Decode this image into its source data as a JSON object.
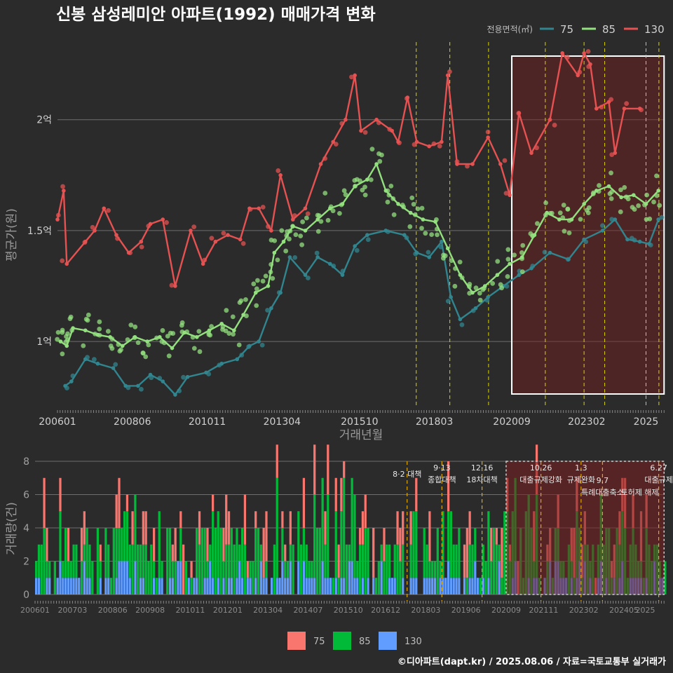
{
  "colors": {
    "s75": "#31858f",
    "s85": "#93e07f",
    "s130": "#e65151",
    "b75": "#f8766d",
    "b85": "#00ba38",
    "b130": "#619cff",
    "grid": "#6e6e6e",
    "event": "#d9d500"
  },
  "chart_data": [
    {
      "type": "line",
      "title": "신봉 삼성레미안 아파트(1992) 매매가격 변화",
      "xlabel": "거래년월",
      "ylabel": "평균가(원)",
      "x_ticks": [
        "200601",
        "200806",
        "201011",
        "201304",
        "201510",
        "201803",
        "202009",
        "202302",
        "2025"
      ],
      "y_ticks": [
        {
          "value": 1.0,
          "label": "1억"
        },
        {
          "value": 1.5,
          "label": "1.5억"
        },
        {
          "value": 2.0,
          "label": "2억"
        }
      ],
      "ylim": [
        0.7,
        2.35
      ],
      "xlim": [
        2006.0,
        2025.6
      ],
      "legend": {
        "title": "전용면적(㎡)",
        "position": "top-right",
        "items": [
          "75",
          "85",
          "130"
        ]
      },
      "highlight_range": [
        "2020-09",
        "2025-08"
      ],
      "event_lines": [
        "2017-08",
        "2018-09",
        "2019-12",
        "2021-10",
        "2023-01",
        "2023-09",
        "2025-01",
        "2025-06"
      ],
      "series": [
        {
          "name": "75",
          "points": [
            [
              2006.25,
              0.8
            ],
            [
              2006.45,
              0.82
            ],
            [
              2006.9,
              0.92
            ],
            [
              2007.3,
              0.9
            ],
            [
              2007.8,
              0.88
            ],
            [
              2008.2,
              0.8
            ],
            [
              2008.6,
              0.8
            ],
            [
              2009.0,
              0.85
            ],
            [
              2009.4,
              0.82
            ],
            [
              2009.8,
              0.76
            ],
            [
              2010.2,
              0.84
            ],
            [
              2010.8,
              0.86
            ],
            [
              2011.3,
              0.9
            ],
            [
              2011.8,
              0.92
            ],
            [
              2012.2,
              0.98
            ],
            [
              2012.5,
              1.0
            ],
            [
              2012.9,
              1.15
            ],
            [
              2013.2,
              1.22
            ],
            [
              2013.5,
              1.38
            ],
            [
              2014.0,
              1.3
            ],
            [
              2014.4,
              1.38
            ],
            [
              2014.8,
              1.35
            ],
            [
              2015.2,
              1.3
            ],
            [
              2015.6,
              1.43
            ],
            [
              2016.0,
              1.48
            ],
            [
              2016.6,
              1.5
            ],
            [
              2017.2,
              1.48
            ],
            [
              2017.6,
              1.4
            ],
            [
              2018.0,
              1.38
            ],
            [
              2018.4,
              1.45
            ],
            [
              2018.7,
              1.2
            ],
            [
              2019.0,
              1.1
            ],
            [
              2019.5,
              1.15
            ],
            [
              2019.9,
              1.2
            ],
            [
              2020.4,
              1.25
            ],
            [
              2020.9,
              1.3
            ],
            [
              2021.3,
              1.33
            ],
            [
              2021.9,
              1.4
            ],
            [
              2022.5,
              1.37
            ],
            [
              2023.0,
              1.46
            ],
            [
              2023.6,
              1.5
            ],
            [
              2024.0,
              1.55
            ],
            [
              2024.4,
              1.46
            ],
            [
              2024.8,
              1.45
            ],
            [
              2025.1,
              1.44
            ],
            [
              2025.4,
              1.55
            ]
          ]
        },
        {
          "name": "85",
          "points": [
            [
              2006.1,
              1.0
            ],
            [
              2006.3,
              0.98
            ],
            [
              2006.5,
              1.06
            ],
            [
              2006.9,
              1.05
            ],
            [
              2007.3,
              1.03
            ],
            [
              2007.7,
              1.02
            ],
            [
              2008.1,
              0.98
            ],
            [
              2008.5,
              1.02
            ],
            [
              2008.9,
              1.0
            ],
            [
              2009.3,
              1.02
            ],
            [
              2009.7,
              0.97
            ],
            [
              2010.1,
              1.04
            ],
            [
              2010.5,
              1.02
            ],
            [
              2010.9,
              1.05
            ],
            [
              2011.3,
              1.08
            ],
            [
              2011.7,
              1.05
            ],
            [
              2012.0,
              1.12
            ],
            [
              2012.4,
              1.22
            ],
            [
              2012.8,
              1.25
            ],
            [
              2013.0,
              1.4
            ],
            [
              2013.3,
              1.45
            ],
            [
              2013.6,
              1.52
            ],
            [
              2014.0,
              1.5
            ],
            [
              2014.4,
              1.55
            ],
            [
              2014.8,
              1.6
            ],
            [
              2015.2,
              1.62
            ],
            [
              2015.6,
              1.7
            ],
            [
              2016.0,
              1.73
            ],
            [
              2016.3,
              1.8
            ],
            [
              2016.6,
              1.68
            ],
            [
              2017.0,
              1.62
            ],
            [
              2017.4,
              1.58
            ],
            [
              2017.8,
              1.55
            ],
            [
              2018.2,
              1.54
            ],
            [
              2018.6,
              1.42
            ],
            [
              2019.0,
              1.3
            ],
            [
              2019.4,
              1.22
            ],
            [
              2019.8,
              1.25
            ],
            [
              2020.2,
              1.3
            ],
            [
              2020.6,
              1.35
            ],
            [
              2021.0,
              1.38
            ],
            [
              2021.4,
              1.48
            ],
            [
              2021.8,
              1.58
            ],
            [
              2022.2,
              1.55
            ],
            [
              2022.6,
              1.55
            ],
            [
              2023.0,
              1.62
            ],
            [
              2023.4,
              1.68
            ],
            [
              2023.8,
              1.7
            ],
            [
              2024.2,
              1.65
            ],
            [
              2024.6,
              1.66
            ],
            [
              2025.0,
              1.62
            ],
            [
              2025.4,
              1.68
            ]
          ]
        },
        {
          "name": "130",
          "points": [
            [
              2006.0,
              1.55
            ],
            [
              2006.2,
              1.68
            ],
            [
              2006.3,
              1.35
            ],
            [
              2006.9,
              1.45
            ],
            [
              2007.2,
              1.5
            ],
            [
              2007.5,
              1.6
            ],
            [
              2007.9,
              1.48
            ],
            [
              2008.3,
              1.4
            ],
            [
              2008.7,
              1.45
            ],
            [
              2009.0,
              1.53
            ],
            [
              2009.4,
              1.55
            ],
            [
              2009.8,
              1.25
            ],
            [
              2010.3,
              1.5
            ],
            [
              2010.7,
              1.35
            ],
            [
              2011.1,
              1.45
            ],
            [
              2011.5,
              1.48
            ],
            [
              2011.9,
              1.46
            ],
            [
              2012.2,
              1.6
            ],
            [
              2012.5,
              1.6
            ],
            [
              2012.9,
              1.5
            ],
            [
              2013.2,
              1.75
            ],
            [
              2013.6,
              1.55
            ],
            [
              2014.0,
              1.6
            ],
            [
              2014.5,
              1.8
            ],
            [
              2014.9,
              1.9
            ],
            [
              2015.3,
              2.0
            ],
            [
              2015.6,
              2.2
            ],
            [
              2015.8,
              1.95
            ],
            [
              2016.3,
              2.0
            ],
            [
              2016.8,
              1.95
            ],
            [
              2017.0,
              1.9
            ],
            [
              2017.3,
              2.1
            ],
            [
              2017.6,
              1.9
            ],
            [
              2018.0,
              1.88
            ],
            [
              2018.4,
              1.9
            ],
            [
              2018.6,
              2.2
            ],
            [
              2018.9,
              1.8
            ],
            [
              2019.4,
              1.8
            ],
            [
              2019.9,
              1.92
            ],
            [
              2020.3,
              1.8
            ],
            [
              2020.6,
              1.66
            ],
            [
              2020.9,
              2.03
            ],
            [
              2021.3,
              1.85
            ],
            [
              2021.9,
              2.0
            ],
            [
              2022.3,
              2.3
            ],
            [
              2022.8,
              2.2
            ],
            [
              2023.0,
              2.3
            ],
            [
              2023.2,
              2.25
            ],
            [
              2023.4,
              2.05
            ],
            [
              2023.8,
              2.08
            ],
            [
              2024.0,
              1.85
            ],
            [
              2024.3,
              2.05
            ],
            [
              2024.8,
              2.05
            ]
          ]
        }
      ]
    },
    {
      "type": "bar",
      "xlabel": "",
      "ylabel": "거래량(건)",
      "x_ticks": [
        "200601",
        "200703",
        "200806",
        "200908",
        "201011",
        "201201",
        "201304",
        "201407",
        "201510",
        "201612",
        "201803",
        "201906",
        "202009",
        "202111",
        "202302",
        "202405",
        "2025"
      ],
      "y_ticks": [
        0,
        2,
        4,
        6,
        8
      ],
      "ylim": [
        0,
        8
      ],
      "xlim": [
        2006.0,
        2025.6
      ],
      "highlight_range": [
        "2020-09",
        "2025-08"
      ],
      "legend": {
        "position": "bottom",
        "items": [
          "75",
          "85",
          "130"
        ]
      },
      "annotations": [
        {
          "date": "2017-08",
          "label": "8·2 대책"
        },
        {
          "date": "2018-09",
          "label": "9·13 종합대책"
        },
        {
          "date": "2019-12",
          "label": "12·16 18차대책"
        },
        {
          "date": "2021-10",
          "label": "10.26 대출규제강화"
        },
        {
          "date": "2023-01",
          "label": "1.3 규제완화"
        },
        {
          "date": "2023-09",
          "label": "9.7 특례대출축소"
        },
        {
          "date": "2025-06",
          "label": "6.27 대출규제"
        }
      ],
      "annotation_extra": "토허제 해제",
      "series_names": [
        "75",
        "85",
        "130"
      ]
    }
  ],
  "caption": "©디아파트(dapt.kr) / 2025.08.06 / 자료=국토교통부 실거래가"
}
